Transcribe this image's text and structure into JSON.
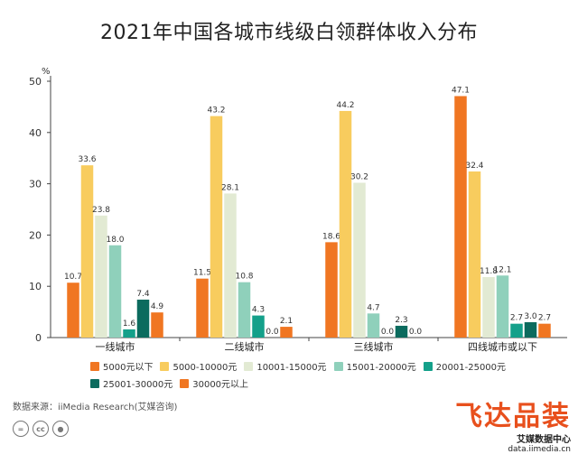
{
  "chart_data": {
    "type": "bar",
    "title": "2021年中国各城市线级白领群体收入分布",
    "ylabel": "%",
    "ylim": [
      0,
      50
    ],
    "yticks": [
      0,
      10,
      20,
      30,
      40,
      50
    ],
    "categories": [
      "一线城市",
      "二线城市",
      "三线城市",
      "四线城市或以下"
    ],
    "series": [
      {
        "name": "5000元以下",
        "color": "#f07622",
        "values": [
          10.7,
          11.5,
          18.6,
          47.1
        ]
      },
      {
        "name": "5000-10000元",
        "color": "#f8cc5e",
        "values": [
          33.6,
          43.2,
          44.2,
          32.4
        ]
      },
      {
        "name": "10001-15000元",
        "color": "#e2ead3",
        "values": [
          23.8,
          28.1,
          30.2,
          11.8
        ]
      },
      {
        "name": "15001-20000元",
        "color": "#8fd0bb",
        "values": [
          18.0,
          10.8,
          4.7,
          12.1
        ]
      },
      {
        "name": "20001-25000元",
        "color": "#14a08a",
        "values": [
          1.6,
          4.3,
          0.0,
          2.7
        ]
      },
      {
        "name": "25001-30000元",
        "color": "#0c6b5e",
        "values": [
          7.4,
          0.0,
          2.3,
          3.0
        ]
      },
      {
        "name": "30000元以上",
        "color": "#f07622",
        "values": [
          4.9,
          2.1,
          0.0,
          2.7
        ]
      }
    ],
    "grid": false,
    "legend_placement": "bottom"
  },
  "source": "数据来源：iiMedia Research(艾媒咨询)",
  "cc_icons": [
    "cc-equal-icon",
    "cc-icon",
    "cc-person-icon"
  ],
  "watermark": {
    "main": "飞达品装",
    "logo": "艾媒数据中心",
    "url": "data.iimedia.cn"
  }
}
